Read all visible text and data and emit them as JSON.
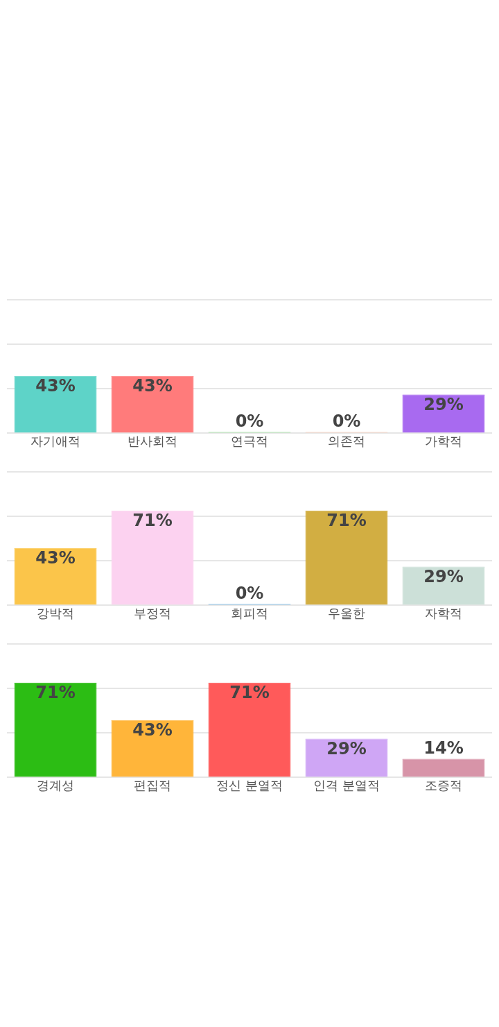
{
  "chart_data": [
    {
      "type": "bar",
      "categories": [
        "자기애적",
        "반사회적",
        "연극적",
        "의존적",
        "가학적"
      ],
      "values": [
        43,
        43,
        0,
        0,
        29
      ],
      "value_labels": [
        "43%",
        "43%",
        "0%",
        "0%",
        "29%"
      ],
      "colors": [
        "#5ed3c8",
        "#ff7b7b",
        "#7ee07e",
        "#ffc09f",
        "#a86af0"
      ],
      "ylim": [
        0,
        100
      ],
      "yticks": [
        {
          "value": 0,
          "label": null
        },
        {
          "value": 33.3,
          "label": null
        },
        {
          "value": 66.7,
          "label": null
        },
        {
          "value": 100,
          "label": null
        }
      ],
      "grid": "y",
      "tick_labels": "x"
    },
    {
      "type": "bar",
      "categories": [
        "강박적",
        "부정적",
        "회피적",
        "우울한",
        "자학적"
      ],
      "values": [
        43,
        71,
        0,
        71,
        29
      ],
      "value_labels": [
        "43%",
        "71%",
        "0%",
        "71%",
        "29%"
      ],
      "colors": [
        "#fbc54a",
        "#fcd2f0",
        "#3399dd",
        "#d2ae42",
        "#cce0d8"
      ],
      "ylim": [
        0,
        100
      ],
      "yticks": [
        {
          "value": 0,
          "label": null
        },
        {
          "value": 33.3,
          "label": null
        },
        {
          "value": 66.7,
          "label": null
        },
        {
          "value": 100,
          "label": null
        }
      ],
      "grid": "y",
      "tick_labels": "x"
    },
    {
      "type": "bar",
      "categories": [
        "경계성",
        "편집적",
        "정신 분열적",
        "인격 분열적",
        "조증적"
      ],
      "values": [
        71,
        43,
        71,
        29,
        14
      ],
      "value_labels": [
        "71%",
        "43%",
        "71%",
        "29%",
        "14%"
      ],
      "colors": [
        "#2cbd14",
        "#ffb53a",
        "#ff5a5a",
        "#cfa6f5",
        "#d794a8"
      ],
      "ylim": [
        0,
        100
      ],
      "yticks": [
        {
          "value": 0,
          "label": null
        },
        {
          "value": 33.3,
          "label": null
        },
        {
          "value": 66.7,
          "label": null
        },
        {
          "value": 100,
          "label": null
        }
      ],
      "grid": "y",
      "tick_labels": "x"
    }
  ]
}
